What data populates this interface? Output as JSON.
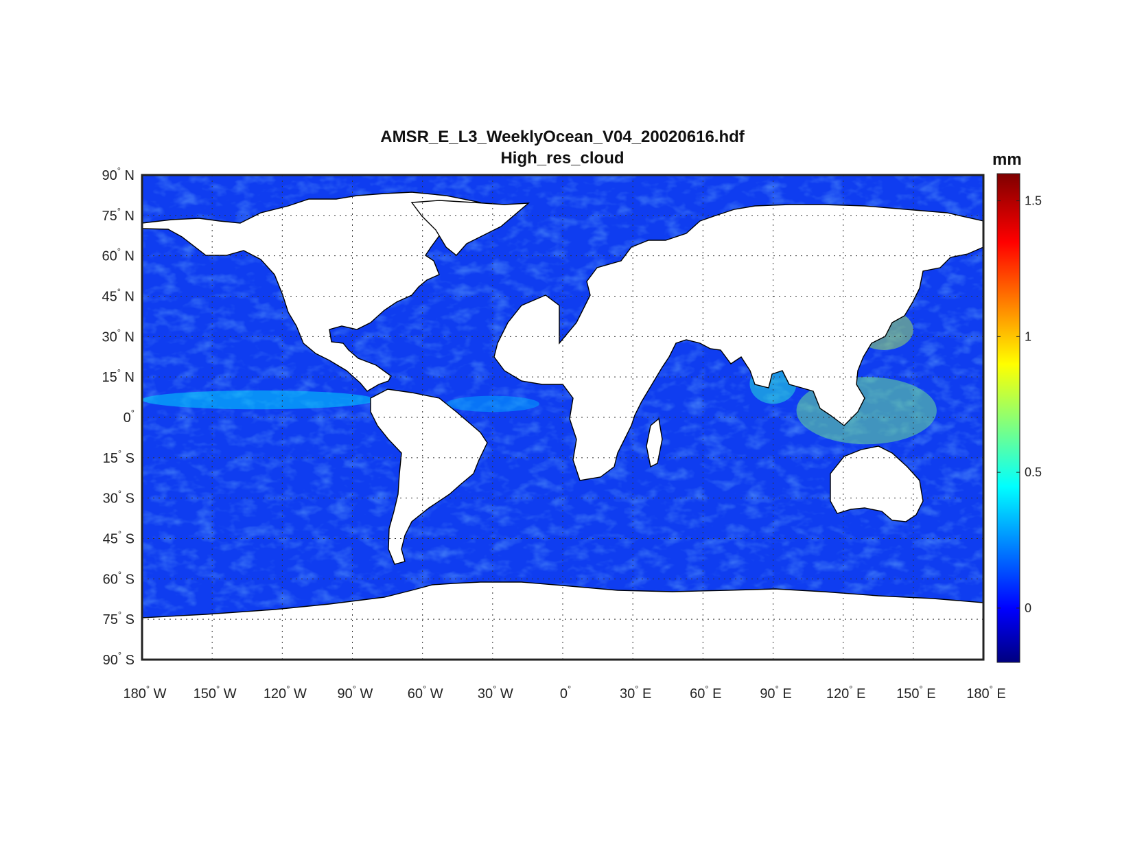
{
  "figure": {
    "title": "AMSR_E_L3_WeeklyOcean_V04_20020616.hdf",
    "subtitle": "High_res_cloud",
    "units": "mm"
  },
  "chart_data": {
    "type": "heatmap",
    "projection": "equirectangular",
    "variable": "High_res_cloud",
    "units": "mm",
    "colormap": "jet",
    "clim": [
      -0.2,
      1.6
    ],
    "colorbar_ticks": [
      0,
      0.5,
      1,
      1.5
    ],
    "colorbar_tick_labels": [
      "0",
      "0.5",
      "1",
      "1.5"
    ],
    "lon_ticks": [
      -180,
      -150,
      -120,
      -90,
      -60,
      -30,
      0,
      30,
      60,
      90,
      120,
      150,
      180
    ],
    "lon_tick_labels": [
      {
        "num": "180",
        "hemi": "W"
      },
      {
        "num": "150",
        "hemi": "W"
      },
      {
        "num": "120",
        "hemi": "W"
      },
      {
        "num": "90",
        "hemi": "W"
      },
      {
        "num": "60",
        "hemi": "W"
      },
      {
        "num": "30",
        "hemi": "W"
      },
      {
        "num": "0",
        "hemi": ""
      },
      {
        "num": "30",
        "hemi": "E"
      },
      {
        "num": "60",
        "hemi": "E"
      },
      {
        "num": "90",
        "hemi": "E"
      },
      {
        "num": "120",
        "hemi": "E"
      },
      {
        "num": "150",
        "hemi": "E"
      },
      {
        "num": "180",
        "hemi": "E"
      }
    ],
    "lat_ticks": [
      90,
      75,
      60,
      45,
      30,
      15,
      0,
      -15,
      -30,
      -45,
      -60,
      -75,
      -90
    ],
    "lat_tick_labels": [
      {
        "num": "90",
        "hemi": "N"
      },
      {
        "num": "75",
        "hemi": "N"
      },
      {
        "num": "60",
        "hemi": "N"
      },
      {
        "num": "45",
        "hemi": "N"
      },
      {
        "num": "30",
        "hemi": "N"
      },
      {
        "num": "15",
        "hemi": "N"
      },
      {
        "num": "0",
        "hemi": ""
      },
      {
        "num": "15",
        "hemi": "S"
      },
      {
        "num": "30",
        "hemi": "S"
      },
      {
        "num": "45",
        "hemi": "S"
      },
      {
        "num": "60",
        "hemi": "S"
      },
      {
        "num": "75",
        "hemi": "S"
      },
      {
        "num": "90",
        "hemi": "S"
      }
    ],
    "grid": true,
    "land_mask_color": "#ffffff",
    "coastline_color": "#000000",
    "typical_ocean_value": 0.1,
    "enhanced_regions": [
      {
        "name": "ITCZ Pacific",
        "lat_range": [
          3,
          10
        ],
        "lon_range": [
          -180,
          -80
        ],
        "value": 0.45
      },
      {
        "name": "ITCZ Atlantic",
        "lat_range": [
          2,
          8
        ],
        "lon_range": [
          -50,
          -10
        ],
        "value": 0.35
      },
      {
        "name": "Bay of Bengal / Indian Monsoon",
        "lat_range": [
          5,
          20
        ],
        "lon_range": [
          80,
          100
        ],
        "value": 0.55
      },
      {
        "name": "Maritime Continent",
        "lat_range": [
          -10,
          15
        ],
        "lon_range": [
          100,
          160
        ],
        "value": 0.7
      },
      {
        "name": "Western Pacific Japan",
        "lat_range": [
          25,
          40
        ],
        "lon_range": [
          125,
          150
        ],
        "value": 0.8
      }
    ]
  }
}
